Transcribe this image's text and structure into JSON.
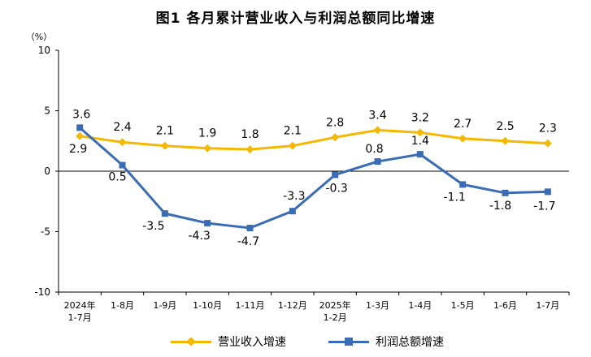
{
  "chart_data": {
    "type": "line",
    "title": "图1  各月累计营业收入与利润总额同比增速",
    "y_unit": "（%）",
    "ylim": [
      -10,
      10
    ],
    "y_ticks": [
      "10",
      "5",
      "0",
      "-5",
      "-10"
    ],
    "categories": [
      [
        "2024年",
        "1-7月"
      ],
      [
        "1-8月"
      ],
      [
        "1-9月"
      ],
      [
        "1-10月"
      ],
      [
        "1-11月"
      ],
      [
        "1-12月"
      ],
      [
        "2025年",
        "1-2月"
      ],
      [
        "1-3月"
      ],
      [
        "1-4月"
      ],
      [
        "1-5月"
      ],
      [
        "1-6月"
      ],
      [
        "1-7月"
      ]
    ],
    "series": [
      {
        "name": "营业收入增速",
        "color": "#F5B800",
        "marker": "diamond",
        "values": [
          2.9,
          2.4,
          2.1,
          1.9,
          1.8,
          2.1,
          2.8,
          3.4,
          3.2,
          2.7,
          2.5,
          2.3
        ],
        "labels": [
          "2.9",
          "2.4",
          "2.1",
          "1.9",
          "1.8",
          "2.1",
          "2.8",
          "3.4",
          "3.2",
          "2.7",
          "2.5",
          "2.3"
        ]
      },
      {
        "name": "利润总额增速",
        "color": "#3A6CB5",
        "marker": "square",
        "values": [
          3.6,
          0.5,
          -3.5,
          -4.3,
          -4.7,
          -3.3,
          -0.3,
          0.8,
          1.4,
          -1.1,
          -1.8,
          -1.7
        ],
        "labels": [
          "3.6",
          "0.5",
          "-3.5",
          "-4.3",
          "-4.7",
          "-3.3",
          "-0.3",
          "0.8",
          "1.4",
          "-1.1",
          "-1.8",
          "-1.7"
        ]
      }
    ],
    "grid": false,
    "legend_position": "bottom"
  }
}
